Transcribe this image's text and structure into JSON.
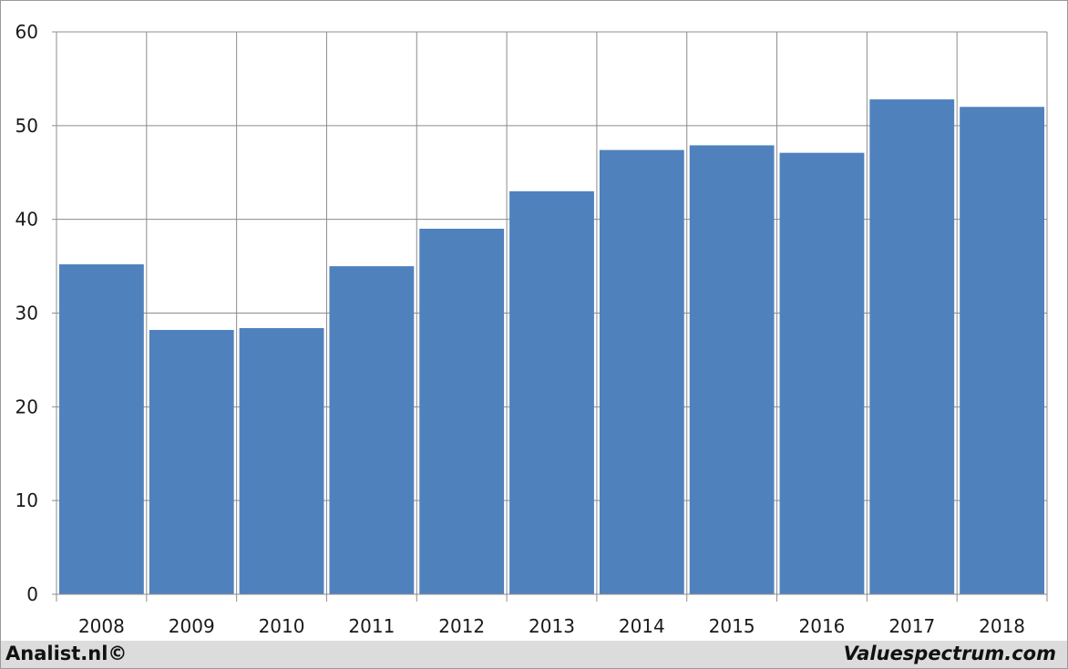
{
  "chart_data": {
    "type": "bar",
    "categories": [
      "2008",
      "2009",
      "2010",
      "2011",
      "2012",
      "2013",
      "2014",
      "2015",
      "2016",
      "2017",
      "2018"
    ],
    "values": [
      35.2,
      28.2,
      28.4,
      35.0,
      39.0,
      43.0,
      47.4,
      47.9,
      47.1,
      52.8,
      52.0
    ],
    "title": "",
    "xlabel": "",
    "ylabel": "",
    "ylim": [
      0,
      60
    ],
    "yticks": [
      "0",
      "10",
      "20",
      "30",
      "40",
      "50",
      "60"
    ],
    "grid": true,
    "bar_color": "#4f81bd"
  },
  "footer": {
    "left_text": "Analist.nl©",
    "right_text": "Valuespectrum.com"
  }
}
